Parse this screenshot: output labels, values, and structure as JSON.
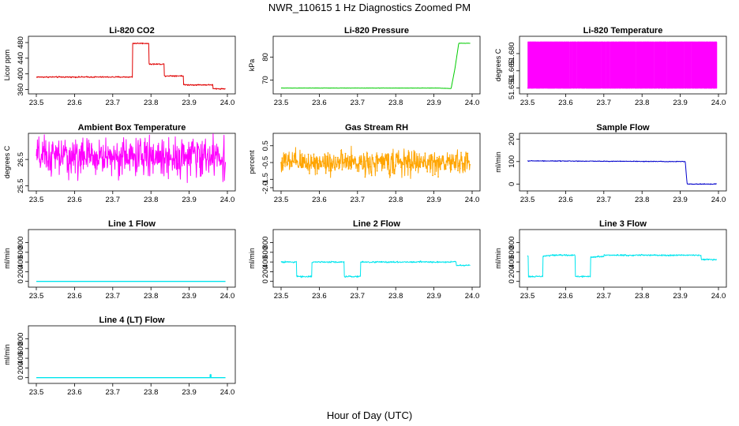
{
  "figure": {
    "title": "NWR_110615  1 Hz Diagnostics Zoomed PM",
    "xlabel": "Hour of Day (UTC)"
  },
  "chart_data": [
    {
      "type": "line",
      "title": "Li-820 CO2",
      "ylabel": "Licor ppm",
      "xlim": [
        23.5,
        24.0
      ],
      "ylim": [
        355,
        490
      ],
      "yticks": [
        360,
        400,
        440,
        480
      ],
      "yticklabels": [
        "360",
        "400",
        "440",
        "480"
      ],
      "xticks": [
        "23.5",
        "23.6",
        "23.7",
        "23.8",
        "23.9",
        "24.0"
      ],
      "color": "#e00000",
      "series": [
        {
          "x": [
            23.5,
            23.752,
            23.752,
            23.795,
            23.795,
            23.835,
            23.835,
            23.885,
            23.885,
            23.962,
            23.962,
            23.98,
            23.98,
            23.995
          ],
          "y": [
            392,
            392,
            478,
            478,
            425,
            425,
            395,
            395,
            372,
            372,
            362,
            362,
            362,
            362
          ]
        }
      ],
      "noise": 1.2
    },
    {
      "type": "line",
      "title": "Li-820 Pressure",
      "ylabel": "kPa",
      "xlim": [
        23.5,
        24.0
      ],
      "ylim": [
        65,
        88
      ],
      "yticks": [
        70,
        80
      ],
      "yticklabels": [
        "70",
        "80"
      ],
      "xticks": [
        "23.5",
        "23.6",
        "23.7",
        "23.8",
        "23.9",
        "24.0"
      ],
      "color": "#00cc00",
      "series": [
        {
          "x": [
            23.5,
            23.91,
            23.945,
            23.955,
            23.965,
            23.995
          ],
          "y": [
            66.5,
            66.5,
            66.3,
            75,
            86,
            86
          ]
        }
      ],
      "noise": 0.05
    },
    {
      "type": "line",
      "title": "Li-820 Temperature",
      "ylabel": "degrees C",
      "xlim": [
        23.5,
        24.0
      ],
      "ylim": [
        51.647,
        51.693
      ],
      "yticks": [
        51.65,
        51.665,
        51.68
      ],
      "yticklabels": [
        "51.650",
        "51.665",
        "51.680"
      ],
      "xticks": [
        "23.5",
        "23.6",
        "23.7",
        "23.8",
        "23.9",
        "24.0"
      ],
      "color": "#ff00ff",
      "levels": [
        51.65,
        51.69
      ],
      "style": "square-wave"
    },
    {
      "type": "line",
      "title": "Ambient Box Temperature",
      "ylabel": "degrees C",
      "xlim": [
        23.5,
        24.0
      ],
      "ylim": [
        25.4,
        27.4
      ],
      "yticks": [
        25.5,
        26.5
      ],
      "yticklabels": [
        "25.5",
        "26.5"
      ],
      "xticks": [
        "23.5",
        "23.6",
        "23.7",
        "23.8",
        "23.9",
        "24.0"
      ],
      "color": "#ff00ff",
      "series": [
        {
          "x": [
            23.5,
            23.995
          ],
          "y": [
            26.6,
            26.6
          ]
        }
      ],
      "noise": 0.55
    },
    {
      "type": "line",
      "title": "Gas Stream RH",
      "ylabel": "percent",
      "xlim": [
        23.5,
        24.0
      ],
      "ylim": [
        -2.05,
        1.1
      ],
      "yticks": [
        -2.0,
        -1.5,
        -0.5,
        0.5
      ],
      "yticklabels": [
        "-2.0",
        "-1.5",
        "-0.5",
        "0.5"
      ],
      "xticks": [
        "23.5",
        "23.6",
        "23.7",
        "23.8",
        "23.9",
        "24.0"
      ],
      "color": "#ffa500",
      "series": [
        {
          "x": [
            23.5,
            23.995
          ],
          "y": [
            -0.5,
            -0.5
          ]
        }
      ],
      "noise": 0.55,
      "markers": true
    },
    {
      "type": "line",
      "title": "Sample Flow",
      "ylabel": "ml/min",
      "xlim": [
        23.5,
        24.0
      ],
      "ylim": [
        -20,
        215
      ],
      "yticks": [
        0,
        100,
        200
      ],
      "yticklabels": [
        "0",
        "100",
        "200"
      ],
      "xticks": [
        "23.5",
        "23.6",
        "23.7",
        "23.8",
        "23.9",
        "24.0"
      ],
      "color": "#0000cc",
      "series": [
        {
          "x": [
            23.5,
            23.913,
            23.913,
            23.918,
            23.918,
            23.995
          ],
          "y": [
            103,
            100,
            100,
            0,
            0,
            0
          ]
        }
      ],
      "noise": 1.2
    },
    {
      "type": "line",
      "title": "Line 1 Flow",
      "ylabel": "ml/min",
      "xlim": [
        23.5,
        24.0
      ],
      "ylim": [
        -70,
        1020
      ],
      "yticks": [
        0,
        200,
        400,
        600,
        800
      ],
      "yticklabels": [
        "0",
        "200",
        "400",
        "600",
        "800"
      ],
      "xticks": [
        "23.5",
        "23.6",
        "23.7",
        "23.8",
        "23.9",
        "24.0"
      ],
      "color": "#00e5ee",
      "series": [
        {
          "x": [
            23.5,
            23.995
          ],
          "y": [
            0,
            0
          ]
        }
      ],
      "noise": 0
    },
    {
      "type": "line",
      "title": "Line 2 Flow",
      "ylabel": "ml/min",
      "xlim": [
        23.5,
        24.0
      ],
      "ylim": [
        -70,
        1020
      ],
      "yticks": [
        0,
        200,
        400,
        600,
        800
      ],
      "yticklabels": [
        "0",
        "200",
        "400",
        "600",
        "800"
      ],
      "xticks": [
        "23.5",
        "23.6",
        "23.7",
        "23.8",
        "23.9",
        "24.0"
      ],
      "color": "#00e5ee",
      "series": [
        {
          "x": [
            23.5,
            23.54,
            23.54,
            23.58,
            23.58,
            23.665,
            23.665,
            23.708,
            23.708,
            23.958,
            23.958,
            23.995
          ],
          "y": [
            400,
            400,
            100,
            100,
            400,
            400,
            100,
            100,
            400,
            400,
            330,
            330
          ]
        }
      ],
      "noise": 12
    },
    {
      "type": "line",
      "title": "Line 3 Flow",
      "ylabel": "ml/min",
      "xlim": [
        23.5,
        24.0
      ],
      "ylim": [
        -70,
        1020
      ],
      "yticks": [
        0,
        200,
        400,
        600,
        800
      ],
      "yticklabels": [
        "0",
        "200",
        "400",
        "600",
        "800"
      ],
      "xticks": [
        "23.5",
        "23.6",
        "23.7",
        "23.8",
        "23.9",
        "24.0"
      ],
      "color": "#00e5ee",
      "series": [
        {
          "x": [
            23.5,
            23.502,
            23.502,
            23.54,
            23.54,
            23.565,
            23.565,
            23.625,
            23.625,
            23.665,
            23.665,
            23.7,
            23.7,
            23.955,
            23.955,
            23.995
          ],
          "y": [
            520,
            520,
            100,
            100,
            520,
            540,
            540,
            540,
            100,
            100,
            500,
            520,
            540,
            540,
            450,
            450
          ]
        }
      ],
      "noise": 12
    },
    {
      "type": "line",
      "title": "Line 4 (LT) Flow",
      "ylabel": "ml/min",
      "xlim": [
        23.5,
        24.0
      ],
      "ylim": [
        -70,
        1020
      ],
      "yticks": [
        0,
        200,
        400,
        600,
        800
      ],
      "yticklabels": [
        "0",
        "200",
        "400",
        "600",
        "800"
      ],
      "xticks": [
        "23.5",
        "23.6",
        "23.7",
        "23.8",
        "23.9",
        "24.0"
      ],
      "color": "#00e5ee",
      "series": [
        {
          "x": [
            23.5,
            23.955,
            23.955,
            23.957,
            23.957,
            23.995
          ],
          "y": [
            0,
            0,
            60,
            60,
            0,
            0
          ]
        }
      ],
      "noise": 0
    }
  ]
}
